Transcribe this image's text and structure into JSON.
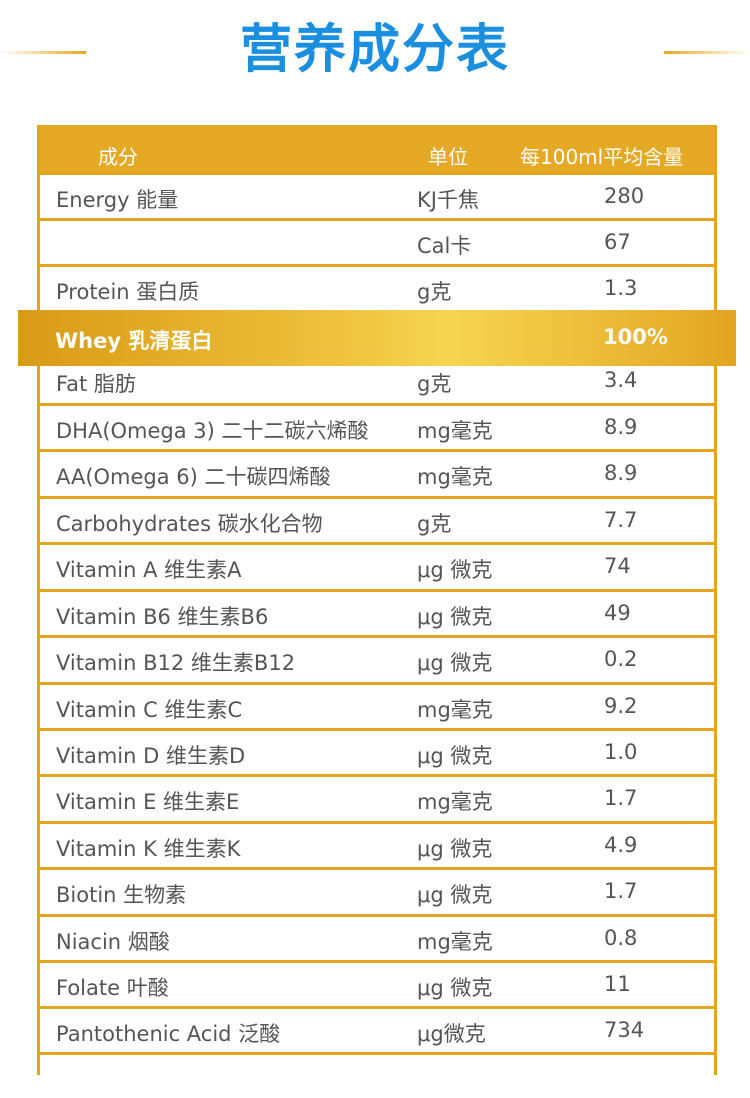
{
  "title": "营养成分表",
  "colors": {
    "gold": "#e3a41f",
    "title_blue": "#1a8fe0"
  },
  "header": {
    "name": "成分",
    "unit": "单位",
    "amount": "每100ml平均含量"
  },
  "rows": [
    {
      "name": "Energy 能量",
      "unit": "KJ千焦",
      "amount": "280"
    },
    {
      "name": "",
      "unit": "Cal卡",
      "amount": "67"
    },
    {
      "name": "Protein 蛋白质",
      "unit": "g克",
      "amount": "1.3"
    },
    {
      "name": "",
      "unit": "",
      "amount": ""
    },
    {
      "name": "Fat 脂肪",
      "unit": "g克",
      "amount": "3.4"
    },
    {
      "name": "DHA(Omega 3) 二十二碳六烯酸",
      "unit": "mg毫克",
      "amount": "8.9"
    },
    {
      "name": "AA(Omega 6) 二十碳四烯酸",
      "unit": "mg毫克",
      "amount": "8.9"
    },
    {
      "name": "Carbohydrates 碳水化合物",
      "unit": "g克",
      "amount": "7.7"
    },
    {
      "name": "Vitamin A 维生素A",
      "unit": "μg 微克",
      "amount": "74"
    },
    {
      "name": "Vitamin B6 维生素B6",
      "unit": "μg 微克",
      "amount": "49"
    },
    {
      "name": "Vitamin B12 维生素B12",
      "unit": "μg 微克",
      "amount": "0.2"
    },
    {
      "name": "Vitamin C 维生素C",
      "unit": "mg毫克",
      "amount": "9.2"
    },
    {
      "name": "Vitamin D 维生素D",
      "unit": "μg 微克",
      "amount": "1.0"
    },
    {
      "name": "Vitamin E 维生素E",
      "unit": "mg毫克",
      "amount": "1.7"
    },
    {
      "name": "Vitamin K 维生素K",
      "unit": "μg 微克",
      "amount": "4.9"
    },
    {
      "name": "Biotin 生物素",
      "unit": "μg 微克",
      "amount": "1.7"
    },
    {
      "name": "Niacin 烟酸",
      "unit": "mg毫克",
      "amount": "0.8"
    },
    {
      "name": "Folate 叶酸",
      "unit": "μg 微克",
      "amount": "11"
    },
    {
      "name": "Pantothenic Acid 泛酸",
      "unit": "μg微克",
      "amount": "734"
    }
  ],
  "highlight": {
    "name": "Whey 乳清蛋白",
    "amount": "100%"
  }
}
